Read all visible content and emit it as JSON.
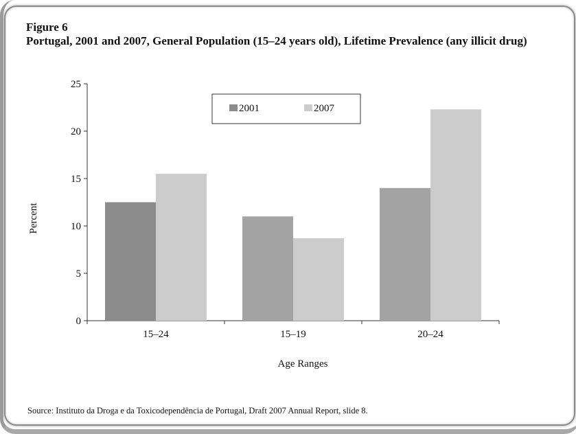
{
  "figure_label": "Figure 6",
  "figure_title": "Portugal, 2001 and 2007, General Population (15–24 years old), Lifetime Prevalence (any illicit drug)",
  "source": "Source: Instituto da Droga e da Toxicodependência de Portugal, Draft 2007 Annual Report, slide 8.",
  "colors": {
    "series_2001": "#8c8c8c",
    "series_2001_alt": "#a3a3a3",
    "series_2007": "#cccccc"
  },
  "chart_data": {
    "type": "bar",
    "title": "Portugal, 2001 and 2007, General Population (15–24 years old), Lifetime Prevalence (any illicit drug)",
    "xlabel": "Age Ranges",
    "ylabel": "Percent",
    "categories": [
      "15–24",
      "15–19",
      "20–24"
    ],
    "series": [
      {
        "name": "2001",
        "values": [
          12.5,
          11.0,
          14.0
        ]
      },
      {
        "name": "2007",
        "values": [
          15.5,
          8.7,
          22.3
        ]
      }
    ],
    "ylim": [
      0,
      25
    ],
    "yticks": [
      0,
      5,
      10,
      15,
      20,
      25
    ],
    "legend_position": "top-center",
    "grid": false
  }
}
